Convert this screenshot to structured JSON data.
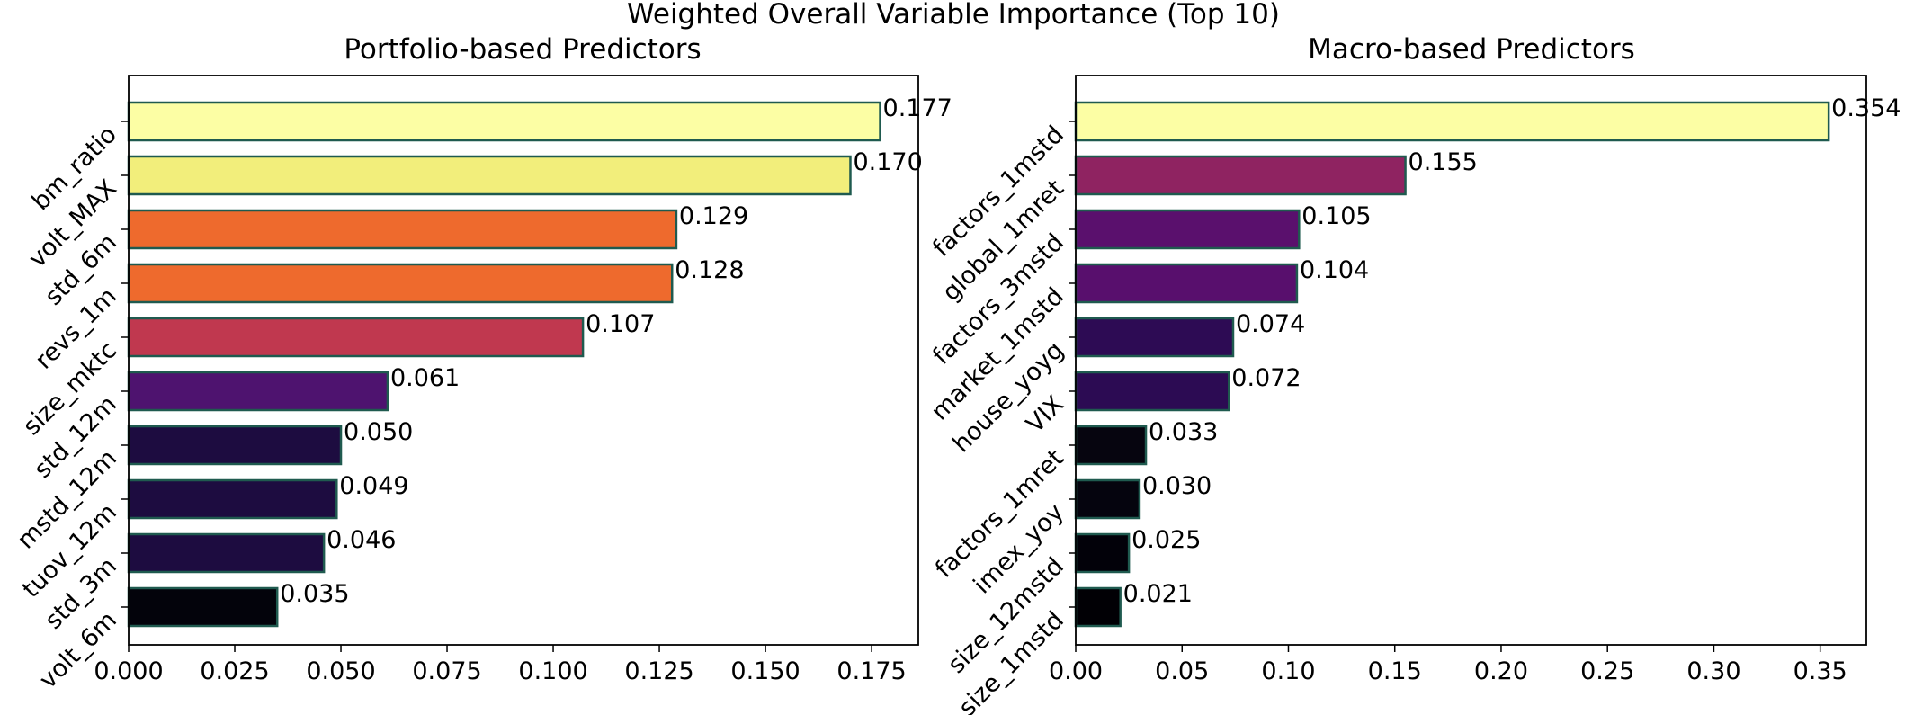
{
  "figure_title": "Weighted Overall Variable Importance (Top 10)",
  "chart_data": [
    {
      "type": "bar",
      "orientation": "horizontal",
      "title": "Portfolio-based Predictors",
      "xlabel": "",
      "ylabel": "",
      "categories": [
        "bm_ratio",
        "volt_MAX",
        "std_6m",
        "revs_1m",
        "size_mktc",
        "std_12m",
        "mstd_12m",
        "tuov_12m",
        "std_3m",
        "volt_6m"
      ],
      "values": [
        0.177,
        0.17,
        0.129,
        0.128,
        0.107,
        0.061,
        0.05,
        0.049,
        0.046,
        0.035
      ],
      "value_labels": [
        "0.177",
        "0.170",
        "0.129",
        "0.128",
        "0.107",
        "0.061",
        "0.050",
        "0.049",
        "0.046",
        "0.035"
      ],
      "bar_colors": [
        "#fcfea4",
        "#f2ee7b",
        "#ee6a2d",
        "#ee6a2d",
        "#c0384f",
        "#4e136f",
        "#1d0c40",
        "#1d0c40",
        "#1d0c40",
        "#03030b"
      ],
      "edge_color": "#1f5a4f",
      "xlim": [
        0,
        0.186
      ],
      "xticks": [
        0.0,
        0.025,
        0.05,
        0.075,
        0.1,
        0.125,
        0.15,
        0.175
      ],
      "xtick_labels": [
        "0.000",
        "0.025",
        "0.050",
        "0.075",
        "0.100",
        "0.125",
        "0.150",
        "0.175"
      ],
      "grid": false
    },
    {
      "type": "bar",
      "orientation": "horizontal",
      "title": "Macro-based Predictors",
      "xlabel": "",
      "ylabel": "",
      "categories": [
        "factors_1mstd",
        "global_1mret",
        "factors_3mstd",
        "market_1mstd",
        "house_yoyg",
        "VIX",
        "factors_1mret",
        "imex_yoy",
        "size_12mstd",
        "size_1mstd"
      ],
      "values": [
        0.354,
        0.155,
        0.105,
        0.104,
        0.074,
        0.072,
        0.033,
        0.03,
        0.025,
        0.021
      ],
      "value_labels": [
        "0.354",
        "0.155",
        "0.105",
        "0.104",
        "0.074",
        "0.072",
        "0.033",
        "0.030",
        "0.025",
        "0.021"
      ],
      "bar_colors": [
        "#fcfea4",
        "#8f2361",
        "#5a106d",
        "#580f6d",
        "#2d0b54",
        "#2c0b53",
        "#06050f",
        "#05040e",
        "#020109",
        "#010005"
      ],
      "edge_color": "#1f5a4f",
      "xlim": [
        0,
        0.3717
      ],
      "xticks": [
        0.0,
        0.05,
        0.1,
        0.15,
        0.2,
        0.25,
        0.3,
        0.35
      ],
      "xtick_labels": [
        "0.00",
        "0.05",
        "0.10",
        "0.15",
        "0.20",
        "0.25",
        "0.30",
        "0.35"
      ],
      "grid": false
    }
  ]
}
